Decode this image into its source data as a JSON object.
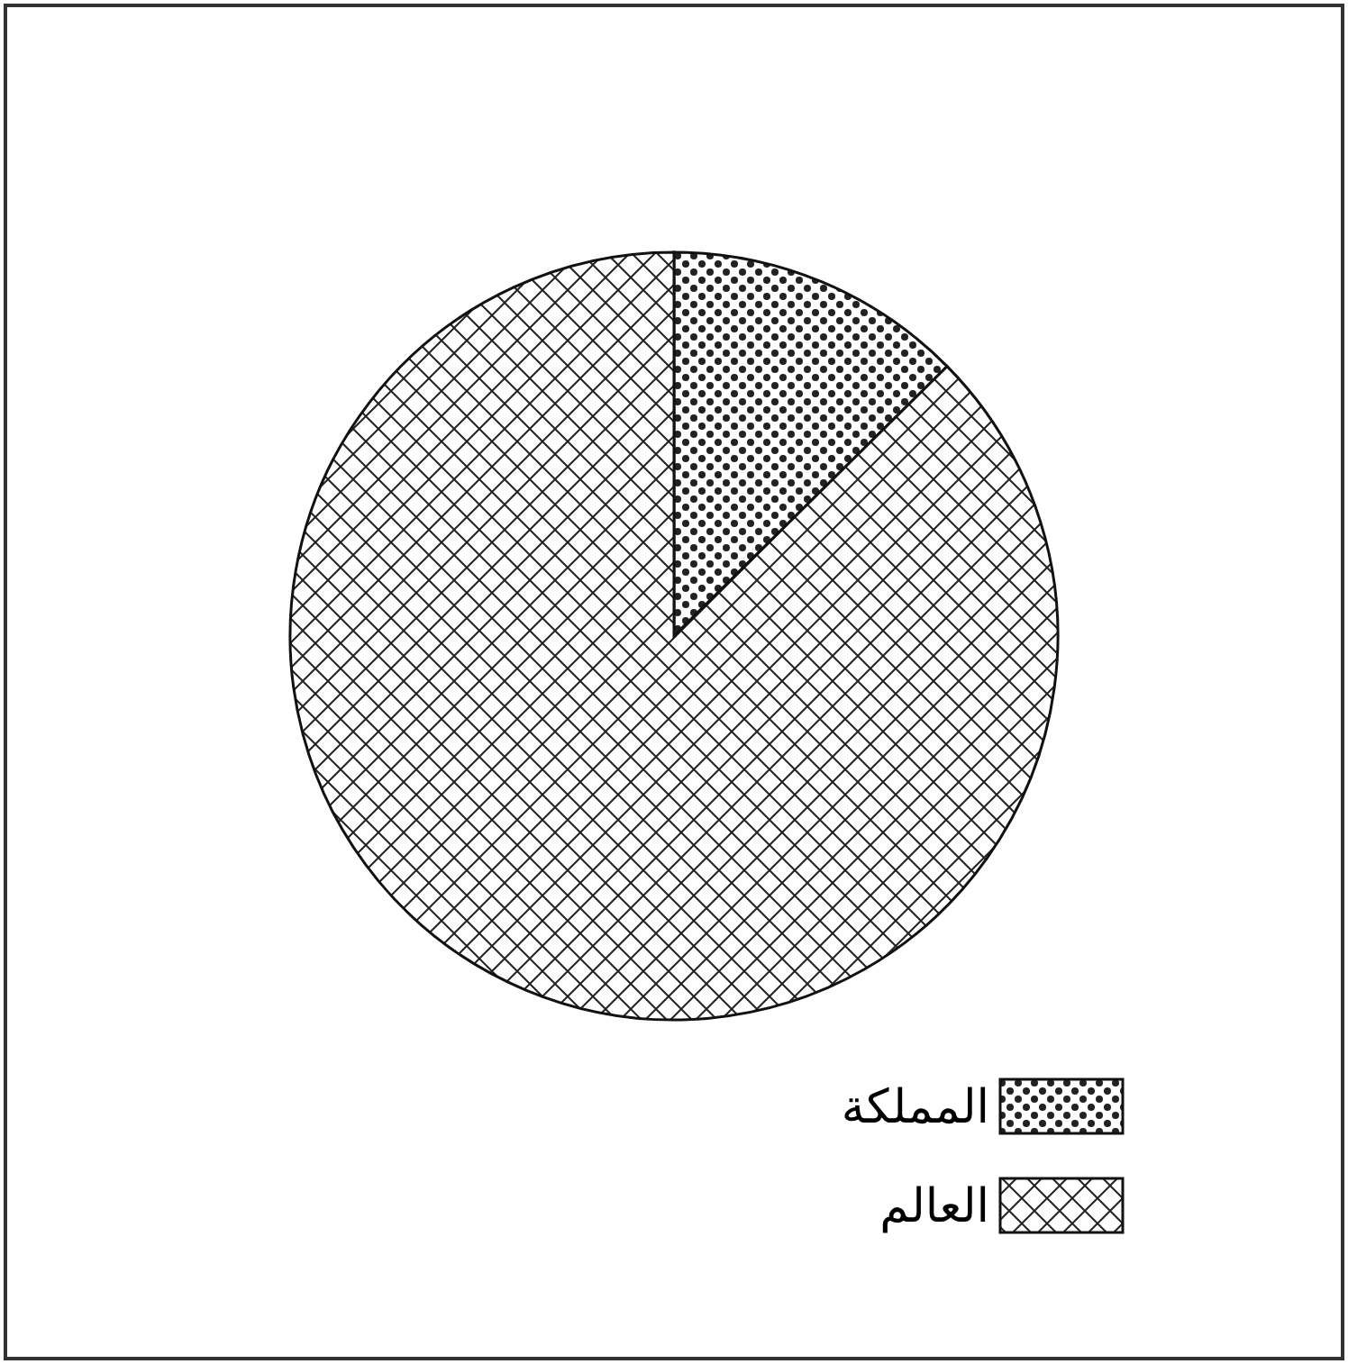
{
  "chart_data": {
    "type": "pie",
    "categories": [
      "المملكة",
      "العالم"
    ],
    "values": [
      12.6,
      87.4
    ],
    "legend": "bottom"
  }
}
